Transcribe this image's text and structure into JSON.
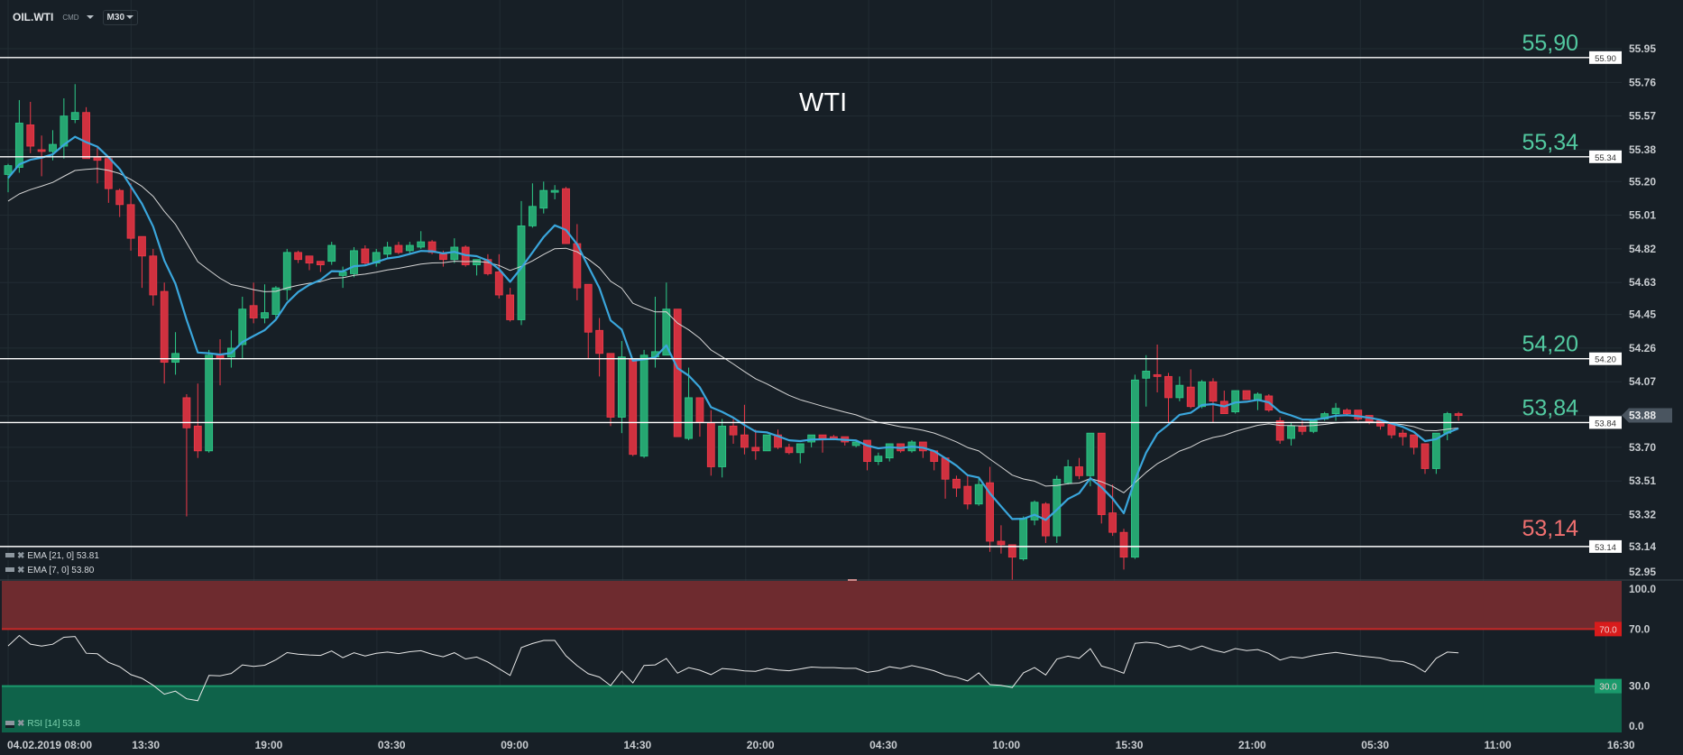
{
  "toolbar": {
    "symbol": "OIL.WTI",
    "category": "CMD",
    "timeframe": "M30"
  },
  "chart_title": "WTI",
  "legend": {
    "ema21": "EMA [21, 0] 53.81",
    "ema7": "EMA [7, 0] 53.80",
    "rsi": "RSI [14] 53.8"
  },
  "colors": {
    "background": "#171f26",
    "grid": "#222c33",
    "bull": "#26a671",
    "bull_border": "#2ecc8a",
    "bear": "#d0313f",
    "bear_border": "#f03a4a",
    "ema7": "#3aa6dc",
    "ema21": "#d6d6d6",
    "level_up": "#52c9a0",
    "level_down": "#f07070",
    "overbought": "#6e2b2f",
    "oversold": "#0f634a"
  },
  "chart_data": {
    "type": "candlestick",
    "title": "WTI",
    "timeframe": "M30",
    "current_price": 53.88,
    "current_price_label": "53.88",
    "price_ticks": [
      "55.95",
      "55.76",
      "55.57",
      "55.38",
      "55.20",
      "55.01",
      "54.82",
      "54.63",
      "54.45",
      "54.26",
      "54.07",
      "53.88",
      "53.70",
      "53.51",
      "53.32",
      "53.14",
      "52.95"
    ],
    "time_labels": [
      "04.02.2019  08:00",
      "13:30",
      "19:00",
      "03:30",
      "09:00",
      "14:30",
      "20:00",
      "04:30",
      "10:00",
      "15:30",
      "21:00",
      "05:30",
      "11:00",
      "16:30"
    ],
    "levels": [
      {
        "price": 55.9,
        "tag": "55.90",
        "label": "55,90",
        "kind": "up"
      },
      {
        "price": 55.34,
        "tag": "55.34",
        "label": "55,34",
        "kind": "up"
      },
      {
        "price": 54.2,
        "tag": "54.20",
        "label": "54,20",
        "kind": "up"
      },
      {
        "price": 53.84,
        "tag": "53.84",
        "label": "53,84",
        "kind": "up"
      },
      {
        "price": 53.14,
        "tag": "53.14",
        "label": "53,14",
        "kind": "down"
      }
    ],
    "ema": [
      {
        "name": "EMA 21",
        "period": 21,
        "seed": 55.09,
        "last": 53.81
      },
      {
        "name": "EMA 7",
        "period": 7,
        "seed": 55.22,
        "last": 53.8
      }
    ],
    "rsi": {
      "period": 14,
      "last": 53.8,
      "overbought": 70,
      "oversold": 30,
      "ticks": [
        "100.0",
        "70.0",
        "30.0",
        "0.0"
      ],
      "ob_tag": "70.0",
      "os_tag": "30.0"
    },
    "candles_ohlc": [
      [
        55.24,
        55.3,
        55.14,
        55.29
      ],
      [
        55.28,
        55.66,
        55.25,
        55.53
      ],
      [
        55.52,
        55.65,
        55.36,
        55.4
      ],
      [
        55.38,
        55.46,
        55.23,
        55.37
      ],
      [
        55.37,
        55.49,
        55.32,
        55.41
      ],
      [
        55.4,
        55.67,
        55.33,
        55.57
      ],
      [
        55.55,
        55.75,
        55.53,
        55.59
      ],
      [
        55.59,
        55.62,
        55.33,
        55.33
      ],
      [
        55.34,
        55.4,
        55.19,
        55.32
      ],
      [
        55.33,
        55.33,
        55.08,
        55.16
      ],
      [
        55.15,
        55.16,
        55.0,
        55.07
      ],
      [
        55.07,
        55.19,
        54.81,
        54.88
      ],
      [
        54.89,
        54.89,
        54.6,
        54.78
      ],
      [
        54.78,
        54.82,
        54.5,
        54.56
      ],
      [
        54.58,
        54.63,
        54.06,
        54.18
      ],
      [
        54.18,
        54.35,
        54.11,
        54.23
      ],
      [
        53.98,
        54.0,
        53.31,
        53.81
      ],
      [
        53.82,
        54.06,
        53.64,
        53.68
      ],
      [
        53.68,
        54.25,
        53.67,
        54.22
      ],
      [
        54.22,
        54.31,
        54.05,
        54.2
      ],
      [
        54.21,
        54.36,
        54.15,
        54.26
      ],
      [
        54.28,
        54.55,
        54.2,
        54.48
      ],
      [
        54.5,
        54.63,
        54.4,
        54.43
      ],
      [
        54.43,
        54.62,
        54.4,
        54.46
      ],
      [
        54.45,
        54.61,
        54.42,
        54.6
      ],
      [
        54.59,
        54.82,
        54.53,
        54.8
      ],
      [
        54.8,
        54.81,
        54.74,
        54.76
      ],
      [
        54.78,
        54.78,
        54.7,
        54.74
      ],
      [
        54.75,
        54.75,
        54.69,
        54.73
      ],
      [
        54.75,
        54.86,
        54.73,
        54.84
      ],
      [
        54.67,
        54.72,
        54.6,
        54.69
      ],
      [
        54.68,
        54.83,
        54.66,
        54.81
      ],
      [
        54.82,
        54.84,
        54.73,
        54.74
      ],
      [
        54.74,
        54.82,
        54.72,
        54.8
      ],
      [
        54.79,
        54.86,
        54.77,
        54.83
      ],
      [
        54.84,
        54.86,
        54.79,
        54.8
      ],
      [
        54.81,
        54.86,
        54.79,
        54.84
      ],
      [
        54.83,
        54.92,
        54.82,
        54.86
      ],
      [
        54.86,
        54.87,
        54.79,
        54.8
      ],
      [
        54.79,
        54.81,
        54.72,
        54.76
      ],
      [
        54.76,
        54.88,
        54.74,
        54.83
      ],
      [
        54.83,
        54.84,
        54.72,
        54.73
      ],
      [
        54.73,
        54.76,
        54.67,
        54.76
      ],
      [
        54.76,
        54.79,
        54.67,
        54.68
      ],
      [
        54.69,
        54.79,
        54.54,
        54.56
      ],
      [
        54.56,
        54.6,
        54.41,
        54.42
      ],
      [
        54.42,
        55.09,
        54.39,
        54.95
      ],
      [
        54.95,
        55.19,
        54.94,
        55.06
      ],
      [
        55.05,
        55.2,
        55.02,
        55.15
      ],
      [
        55.14,
        55.18,
        55.1,
        55.15
      ],
      [
        55.16,
        55.17,
        54.85,
        54.85
      ],
      [
        54.85,
        54.96,
        54.53,
        54.6
      ],
      [
        54.62,
        54.62,
        54.2,
        54.35
      ],
      [
        54.36,
        54.43,
        54.1,
        54.23
      ],
      [
        54.23,
        54.23,
        53.82,
        53.87
      ],
      [
        53.87,
        54.3,
        53.78,
        54.21
      ],
      [
        54.2,
        54.2,
        53.65,
        53.66
      ],
      [
        53.65,
        54.25,
        53.64,
        54.22
      ],
      [
        54.21,
        54.55,
        54.15,
        54.24
      ],
      [
        54.22,
        54.63,
        54.22,
        54.48
      ],
      [
        54.48,
        54.48,
        53.76,
        53.76
      ],
      [
        53.75,
        54.15,
        53.74,
        53.98
      ],
      [
        53.98,
        53.98,
        53.76,
        53.84
      ],
      [
        53.84,
        53.91,
        53.54,
        53.59
      ],
      [
        53.59,
        53.86,
        53.53,
        53.82
      ],
      [
        53.82,
        53.86,
        53.72,
        53.77
      ],
      [
        53.77,
        53.94,
        53.66,
        53.7
      ],
      [
        53.7,
        53.8,
        53.63,
        53.68
      ],
      [
        53.68,
        53.77,
        53.68,
        53.77
      ],
      [
        53.77,
        53.8,
        53.69,
        53.7
      ],
      [
        53.7,
        53.72,
        53.66,
        53.67
      ],
      [
        53.67,
        53.72,
        53.61,
        53.72
      ],
      [
        53.73,
        53.77,
        53.7,
        53.77
      ],
      [
        53.77,
        53.77,
        53.67,
        53.75
      ],
      [
        53.76,
        53.77,
        53.74,
        53.75
      ],
      [
        53.76,
        53.76,
        53.71,
        53.73
      ],
      [
        53.71,
        53.74,
        53.7,
        53.73
      ],
      [
        53.74,
        53.74,
        53.57,
        53.62
      ],
      [
        53.62,
        53.67,
        53.6,
        53.65
      ],
      [
        53.64,
        53.72,
        53.62,
        53.72
      ],
      [
        53.72,
        53.72,
        53.67,
        53.68
      ],
      [
        53.68,
        53.74,
        53.67,
        53.73
      ],
      [
        53.73,
        53.73,
        53.64,
        53.68
      ],
      [
        53.68,
        53.68,
        53.57,
        53.62
      ],
      [
        53.64,
        53.64,
        53.41,
        53.52
      ],
      [
        53.52,
        53.54,
        53.42,
        53.47
      ],
      [
        53.48,
        53.54,
        53.35,
        53.38
      ],
      [
        53.38,
        53.53,
        53.37,
        53.49
      ],
      [
        53.5,
        53.59,
        53.11,
        53.17
      ],
      [
        53.17,
        53.26,
        53.1,
        53.15
      ],
      [
        53.15,
        53.15,
        52.95,
        53.08
      ],
      [
        53.07,
        53.31,
        53.06,
        53.3
      ],
      [
        53.29,
        53.4,
        53.26,
        53.39
      ],
      [
        53.38,
        53.39,
        53.16,
        53.2
      ],
      [
        53.2,
        53.54,
        53.16,
        53.52
      ],
      [
        53.5,
        53.63,
        53.49,
        53.59
      ],
      [
        53.59,
        53.64,
        53.52,
        53.54
      ],
      [
        53.54,
        53.78,
        53.48,
        53.78
      ],
      [
        53.78,
        53.78,
        53.27,
        53.32
      ],
      [
        53.33,
        53.49,
        53.2,
        53.22
      ],
      [
        53.22,
        53.24,
        53.01,
        53.08
      ],
      [
        53.08,
        54.11,
        53.07,
        54.08
      ],
      [
        54.09,
        54.22,
        53.93,
        54.13
      ],
      [
        54.11,
        54.28,
        54.01,
        54.1
      ],
      [
        54.1,
        54.12,
        53.84,
        53.98
      ],
      [
        53.98,
        54.1,
        53.96,
        54.05
      ],
      [
        54.04,
        54.14,
        53.92,
        53.93
      ],
      [
        53.93,
        54.08,
        53.92,
        54.07
      ],
      [
        54.07,
        54.09,
        53.84,
        53.96
      ],
      [
        53.96,
        54.02,
        53.89,
        53.89
      ],
      [
        53.9,
        54.02,
        53.89,
        54.02
      ],
      [
        54.02,
        54.02,
        53.97,
        53.97
      ],
      [
        53.97,
        54.01,
        53.91,
        54.0
      ],
      [
        53.99,
        54.0,
        53.9,
        53.91
      ],
      [
        53.85,
        53.87,
        53.72,
        53.74
      ],
      [
        53.75,
        53.84,
        53.71,
        53.82
      ],
      [
        53.82,
        53.85,
        53.77,
        53.79
      ],
      [
        53.79,
        53.86,
        53.78,
        53.85
      ],
      [
        53.86,
        53.9,
        53.85,
        53.89
      ],
      [
        53.89,
        53.95,
        53.85,
        53.92
      ],
      [
        53.91,
        53.92,
        53.88,
        53.89
      ],
      [
        53.91,
        53.91,
        53.85,
        53.86
      ],
      [
        53.88,
        53.88,
        53.83,
        53.84
      ],
      [
        53.85,
        53.85,
        53.8,
        53.82
      ],
      [
        53.83,
        53.83,
        53.75,
        53.77
      ],
      [
        53.78,
        53.8,
        53.71,
        53.76
      ],
      [
        53.77,
        53.77,
        53.66,
        53.7
      ],
      [
        53.72,
        53.72,
        53.55,
        53.58
      ],
      [
        53.58,
        53.78,
        53.55,
        53.78
      ],
      [
        53.78,
        53.9,
        53.74,
        53.89
      ],
      [
        53.89,
        53.9,
        53.85,
        53.88
      ]
    ]
  }
}
